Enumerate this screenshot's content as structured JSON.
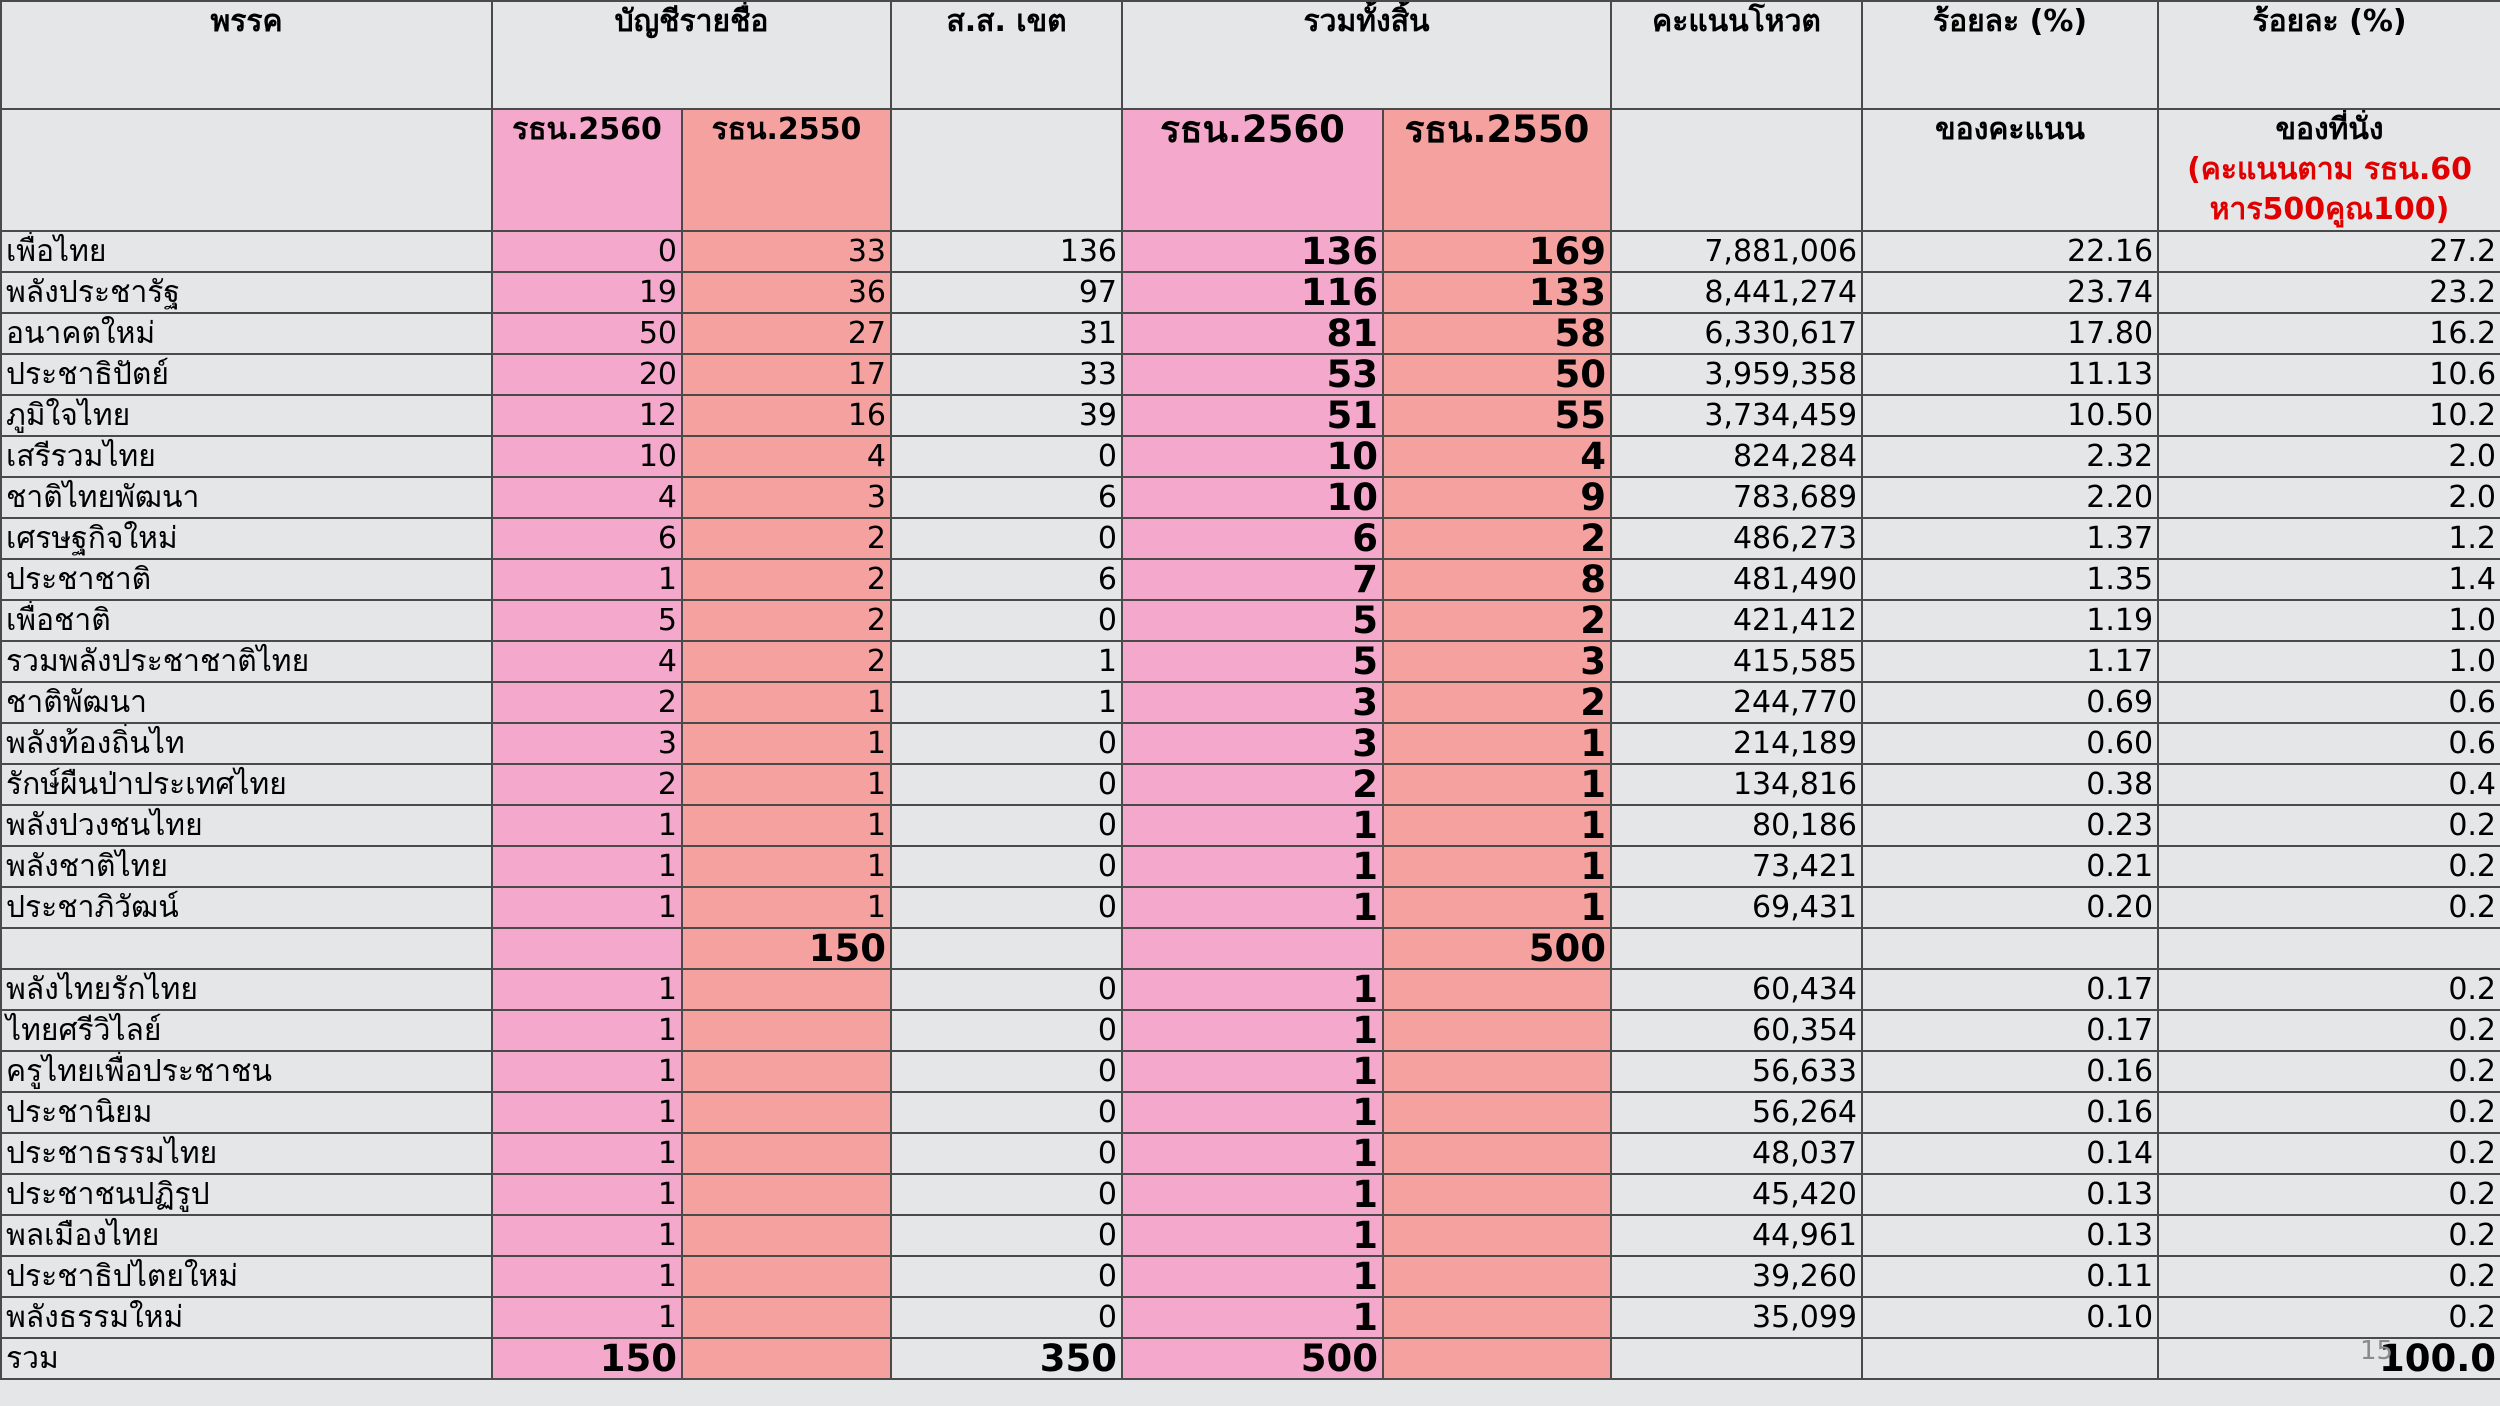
{
  "table": {
    "header": [
      "พรรค",
      "บัญชีรายชื่อ",
      "ส.ส. เขต",
      "รวมทั้งสิ้น",
      "คะแนนโหวต",
      "ร้อยละ (%)",
      "ร้อยละ (%)"
    ],
    "subheader": [
      null,
      "รธน.2560",
      "รธน.2550",
      null,
      "รธน.2560",
      "รธน.2550",
      null,
      "ของคะแนน",
      "ของที่นั่ง"
    ],
    "seats_note": "(คะแนนตาม รธน.60 หาร500คูณ100)",
    "rows": [
      [
        "เพื่อไทย",
        "0",
        "33",
        "136",
        "136",
        "169",
        "7,881,006",
        "22.16",
        "27.2"
      ],
      [
        "พลังประชารัฐ",
        "19",
        "36",
        "97",
        "116",
        "133",
        "8,441,274",
        "23.74",
        "23.2"
      ],
      [
        "อนาคตใหม่",
        "50",
        "27",
        "31",
        "81",
        "58",
        "6,330,617",
        "17.80",
        "16.2"
      ],
      [
        "ประชาธิปัตย์",
        "20",
        "17",
        "33",
        "53",
        "50",
        "3,959,358",
        "11.13",
        "10.6"
      ],
      [
        "ภูมิใจไทย",
        "12",
        "16",
        "39",
        "51",
        "55",
        "3,734,459",
        "10.50",
        "10.2"
      ],
      [
        "เสรีรวมไทย",
        "10",
        "4",
        "0",
        "10",
        "4",
        "824,284",
        "2.32",
        "2.0"
      ],
      [
        "ชาติไทยพัฒนา",
        "4",
        "3",
        "6",
        "10",
        "9",
        "783,689",
        "2.20",
        "2.0"
      ],
      [
        "เศรษฐกิจใหม่",
        "6",
        "2",
        "0",
        "6",
        "2",
        "486,273",
        "1.37",
        "1.2"
      ],
      [
        "ประชาชาติ",
        "1",
        "2",
        "6",
        "7",
        "8",
        "481,490",
        "1.35",
        "1.4"
      ],
      [
        "เพื่อชาติ",
        "5",
        "2",
        "0",
        "5",
        "2",
        "421,412",
        "1.19",
        "1.0"
      ],
      [
        "รวมพลังประชาชาติไทย",
        "4",
        "2",
        "1",
        "5",
        "3",
        "415,585",
        "1.17",
        "1.0"
      ],
      [
        "ชาติพัฒนา",
        "2",
        "1",
        "1",
        "3",
        "2",
        "244,770",
        "0.69",
        "0.6"
      ],
      [
        "พลังท้องถิ่นไท",
        "3",
        "1",
        "0",
        "3",
        "1",
        "214,189",
        "0.60",
        "0.6"
      ],
      [
        "รักษ์ผืนป่าประเทศไทย",
        "2",
        "1",
        "0",
        "2",
        "1",
        "134,816",
        "0.38",
        "0.4"
      ],
      [
        "พลังปวงชนไทย",
        "1",
        "1",
        "0",
        "1",
        "1",
        "80,186",
        "0.23",
        "0.2"
      ],
      [
        "พลังชาติไทย",
        "1",
        "1",
        "0",
        "1",
        "1",
        "73,421",
        "0.21",
        "0.2"
      ],
      [
        "ประชาภิวัฒน์",
        "1",
        "1",
        "0",
        "1",
        "1",
        "69,431",
        "0.20",
        "0.2"
      ],
      [
        null,
        null,
        "150",
        null,
        null,
        "500",
        null,
        null,
        null
      ],
      [
        "พลังไทยรักไทย",
        "1",
        null,
        "0",
        "1",
        null,
        "60,434",
        "0.17",
        "0.2"
      ],
      [
        "ไทยศรีวิไลย์",
        "1",
        null,
        "0",
        "1",
        null,
        "60,354",
        "0.17",
        "0.2"
      ],
      [
        "ครูไทยเพื่อประชาชน",
        "1",
        null,
        "0",
        "1",
        null,
        "56,633",
        "0.16",
        "0.2"
      ],
      [
        "ประชานิยม",
        "1",
        null,
        "0",
        "1",
        null,
        "56,264",
        "0.16",
        "0.2"
      ],
      [
        "ประชาธรรมไทย",
        "1",
        null,
        "0",
        "1",
        null,
        "48,037",
        "0.14",
        "0.2"
      ],
      [
        "ประชาชนปฏิรูป",
        "1",
        null,
        "0",
        "1",
        null,
        "45,420",
        "0.13",
        "0.2"
      ],
      [
        "พลเมืองไทย",
        "1",
        null,
        "0",
        "1",
        null,
        "44,961",
        "0.13",
        "0.2"
      ],
      [
        "ประชาธิปไตยใหม่",
        "1",
        null,
        "0",
        "1",
        null,
        "39,260",
        "0.11",
        "0.2"
      ],
      [
        "พลังธรรมใหม่",
        "1",
        null,
        "0",
        "1",
        null,
        "35,099",
        "0.10",
        "0.2"
      ],
      [
        "รวม",
        "150",
        null,
        "350",
        "500",
        null,
        null,
        null,
        "100.0"
      ]
    ]
  },
  "page_number": "15"
}
